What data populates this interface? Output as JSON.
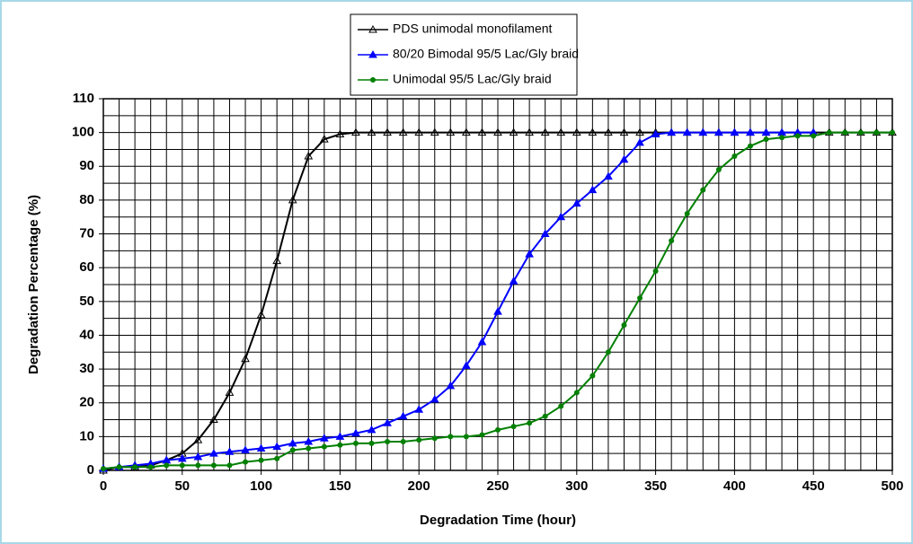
{
  "chart_data": {
    "type": "line",
    "x_label": "Degradation Time (hour)",
    "y_label": "Degradation Percentage (%)",
    "x": [
      0,
      10,
      20,
      30,
      40,
      50,
      60,
      70,
      80,
      90,
      100,
      110,
      120,
      130,
      140,
      150,
      160,
      170,
      180,
      190,
      200,
      210,
      220,
      230,
      240,
      250,
      260,
      270,
      280,
      290,
      300,
      310,
      320,
      330,
      340,
      350,
      360,
      370,
      380,
      390,
      400,
      410,
      420,
      430,
      440,
      450,
      460,
      470,
      480,
      490,
      500
    ],
    "series": [
      {
        "name": "PDS unimodal monofilament",
        "color": "#000000",
        "marker": "triangle-open",
        "values": [
          0,
          1,
          1,
          1.5,
          3,
          5,
          9,
          15,
          23,
          33,
          46,
          62,
          80,
          93,
          98,
          99.5,
          100,
          100,
          100,
          100,
          100,
          100,
          100,
          100,
          100,
          100,
          100,
          100,
          100,
          100,
          100,
          100,
          100,
          100,
          100,
          100,
          100,
          100,
          100,
          100,
          100,
          100,
          100,
          100,
          100,
          100,
          100,
          100,
          100,
          100,
          100
        ]
      },
      {
        "name": "80/20 Bimodal 95/5 Lac/Gly braid",
        "color": "#0000ff",
        "marker": "triangle",
        "values": [
          0.5,
          1,
          1.5,
          2,
          3,
          3.5,
          4,
          5,
          5.5,
          6,
          6.5,
          7,
          8,
          8.5,
          9.5,
          10,
          11,
          12,
          14,
          16,
          18,
          21,
          25,
          31,
          38,
          47,
          56,
          64,
          70,
          75,
          79,
          83,
          87,
          92,
          97,
          99.5,
          100,
          100,
          100,
          100,
          100,
          100,
          100,
          100,
          100,
          100,
          null,
          null,
          null,
          null,
          null
        ]
      },
      {
        "name": "Unimodal 95/5 Lac/Gly braid",
        "color": "#008000",
        "marker": "circle",
        "values": [
          0.5,
          1,
          1,
          1,
          1.5,
          1.5,
          1.5,
          1.5,
          1.5,
          2.5,
          3,
          3.5,
          6,
          6.5,
          7,
          7.5,
          8,
          8,
          8.5,
          8.5,
          9,
          9.5,
          10,
          10,
          10.5,
          12,
          13,
          14,
          16,
          19,
          23,
          28,
          35,
          43,
          51,
          59,
          68,
          76,
          83,
          89,
          93,
          96,
          98,
          98.5,
          99,
          99,
          100,
          100,
          100,
          100,
          100
        ]
      }
    ],
    "xlim": [
      0,
      500
    ],
    "xticks": [
      0,
      50,
      100,
      150,
      200,
      250,
      300,
      350,
      400,
      450,
      500
    ],
    "ylim": [
      0,
      110
    ],
    "yticks": [
      0,
      10,
      20,
      30,
      40,
      50,
      60,
      70,
      80,
      90,
      100,
      110
    ],
    "grid": true,
    "minor_grid": {
      "x": 10,
      "y": 5
    },
    "legend": "top"
  }
}
